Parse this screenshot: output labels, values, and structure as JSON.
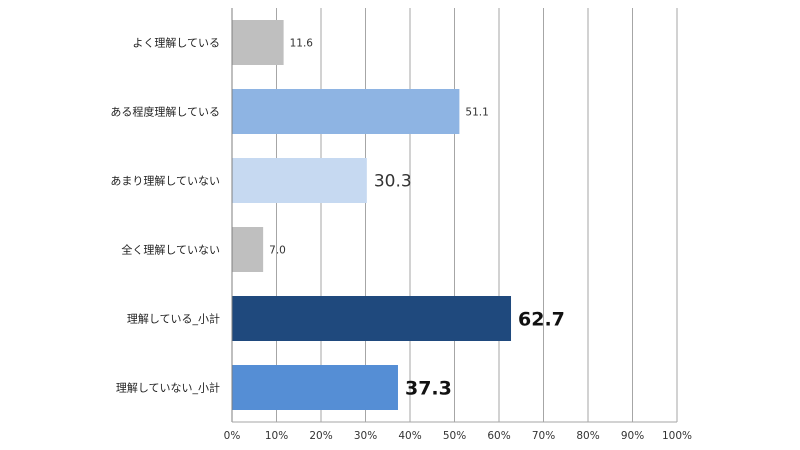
{
  "chart_data": {
    "type": "bar",
    "orientation": "horizontal",
    "categories": [
      "よく理解している",
      "ある程度理解している",
      "あまり理解していない",
      "全く理解していない",
      "理解している_小計",
      "理解していない_小計"
    ],
    "values": [
      11.6,
      51.1,
      30.3,
      7.0,
      62.7,
      37.3
    ],
    "value_labels": [
      "11.6",
      "51.1",
      "30.3",
      "7.0",
      "62.7",
      "37.3"
    ],
    "value_label_emphasis": [
      "small",
      "small",
      "medium",
      "small",
      "large-bold",
      "large-bold"
    ],
    "bar_colors": [
      "#bfbfbf",
      "#8eb4e3",
      "#c6d9f1",
      "#bfbfbf",
      "#1f497d",
      "#558ed5"
    ],
    "xlim": [
      0,
      100
    ],
    "x_ticks": [
      "0%",
      "10%",
      "20%",
      "30%",
      "40%",
      "50%",
      "60%",
      "70%",
      "80%",
      "90%",
      "100%"
    ],
    "title": "",
    "xlabel": "",
    "ylabel": "",
    "grid": "vertical",
    "legend": "none"
  }
}
